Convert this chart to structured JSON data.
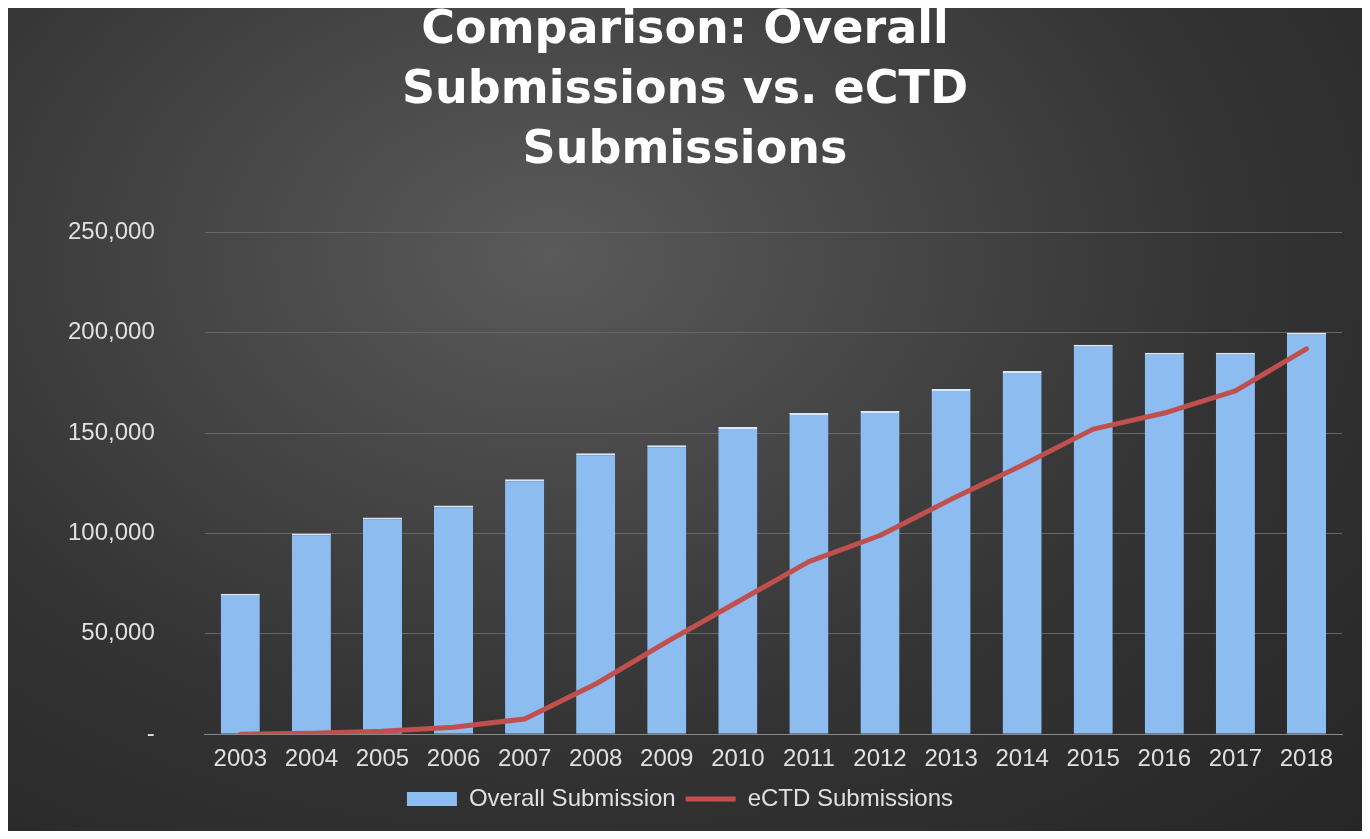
{
  "chart_data": {
    "type": "bar",
    "title": "Comparison: Overall Submissions vs. eCTD Submissions",
    "categories": [
      "2003",
      "2004",
      "2005",
      "2006",
      "2007",
      "2008",
      "2009",
      "2010",
      "2011",
      "2012",
      "2013",
      "2014",
      "2015",
      "2016",
      "2017",
      "2018"
    ],
    "series": [
      {
        "name": "Overall Submission",
        "color": "#8dbdf0",
        "values": [
          70000,
          100000,
          108000,
          114000,
          127000,
          140000,
          144000,
          153000,
          160000,
          161000,
          172000,
          181000,
          194000,
          190000,
          190000,
          200000
        ]
      },
      {
        "name": "eCTD Submissions",
        "type": "line",
        "color": "#c0504d",
        "values": [
          0,
          500,
          1500,
          3500,
          7600,
          25000,
          46000,
          66000,
          86000,
          99000,
          117000,
          134000,
          152000,
          160000,
          171000,
          192000
        ]
      }
    ],
    "ylim": [
      0,
      250000
    ],
    "yticks": [
      {
        "value": 0,
        "label": "-"
      },
      {
        "value": 50000,
        "label": "50,000"
      },
      {
        "value": 100000,
        "label": "100,000"
      },
      {
        "value": 150000,
        "label": "150,000"
      },
      {
        "value": 200000,
        "label": "200,000"
      },
      {
        "value": 250000,
        "label": "250,000"
      }
    ],
    "grid": "y",
    "legend": "bottom",
    "marker": "none",
    "line_style": "solid"
  }
}
